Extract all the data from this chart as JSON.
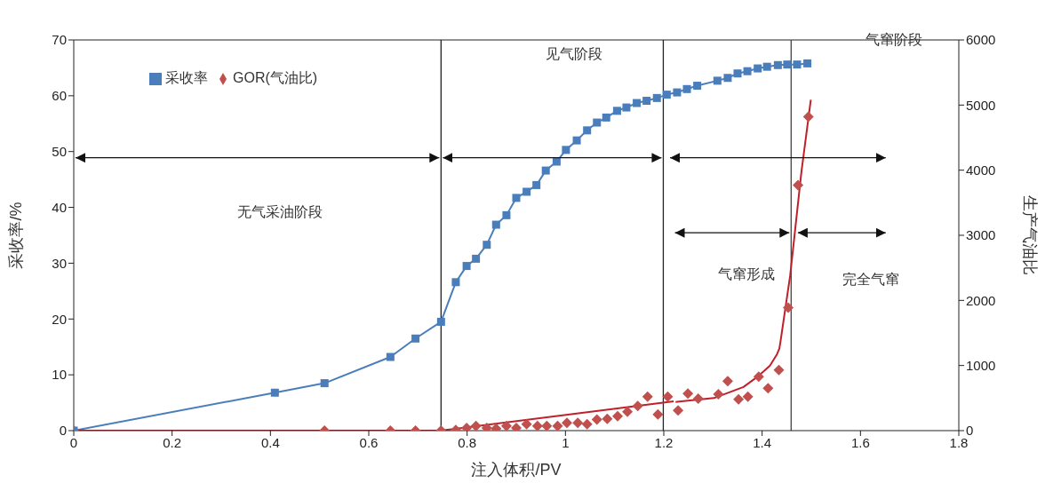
{
  "chart_data": {
    "type": "line",
    "xlabel": "注入体积/PV",
    "ylabel": "采收率/%",
    "y2label": "生产气油比",
    "xlim": [
      0,
      1.8
    ],
    "xticks": [
      0,
      0.2,
      0.4,
      0.6,
      0.8,
      1,
      1.2,
      1.4,
      1.6,
      1.8
    ],
    "ylim": [
      0,
      70
    ],
    "yticks": [
      0,
      10,
      20,
      30,
      40,
      50,
      60,
      70
    ],
    "y2lim": [
      0,
      6000
    ],
    "y2ticks": [
      0,
      1000,
      2000,
      3000,
      4000,
      5000,
      6000
    ],
    "legend": "top left",
    "series": [
      {
        "name": "采收率",
        "color": "#4a7ebb",
        "marker": "square",
        "x": [
          0,
          0.409,
          0.51,
          0.644,
          0.695,
          0.747,
          0.777,
          0.799,
          0.818,
          0.84,
          0.859,
          0.88,
          0.9,
          0.921,
          0.941,
          0.96,
          0.982,
          1.001,
          1.023,
          1.044,
          1.064,
          1.083,
          1.105,
          1.124,
          1.145,
          1.165,
          1.186,
          1.206,
          1.227,
          1.247,
          1.268,
          1.309,
          1.33,
          1.35,
          1.37,
          1.391,
          1.41,
          1.432,
          1.451,
          1.471,
          1.492
        ],
        "values": [
          0,
          6.8,
          8.5,
          13.2,
          16.5,
          19.5,
          26.6,
          29.5,
          30.8,
          33.3,
          36.9,
          38.6,
          41.7,
          42.8,
          44.0,
          46.6,
          48.2,
          50.3,
          52.0,
          53.8,
          55.2,
          56.1,
          57.3,
          57.9,
          58.7,
          59.1,
          59.6,
          60.2,
          60.6,
          61.2,
          61.8,
          62.7,
          63.2,
          64.0,
          64.4,
          64.9,
          65.2,
          65.5,
          65.6,
          65.6,
          65.8
        ]
      },
      {
        "name": "GOR(气油比)",
        "type": "scatter",
        "axis": "y2",
        "color": "#c0504d",
        "marker": "diamond",
        "x": [
          0,
          0.51,
          0.644,
          0.695,
          0.747,
          0.777,
          0.799,
          0.818,
          0.84,
          0.859,
          0.88,
          0.9,
          0.921,
          0.943,
          0.962,
          0.984,
          1.003,
          1.025,
          1.044,
          1.064,
          1.085,
          1.106,
          1.126,
          1.147,
          1.167,
          1.188,
          1.208,
          1.229,
          1.249,
          1.27,
          1.311,
          1.33,
          1.352,
          1.371,
          1.393,
          1.412,
          1.434,
          1.453,
          1.473,
          1.494
        ],
        "values": [
          0,
          0,
          0,
          0,
          0,
          10,
          40,
          70,
          40,
          30,
          70,
          40,
          100,
          70,
          70,
          70,
          120,
          120,
          100,
          170,
          180,
          220,
          290,
          380,
          520,
          250,
          520,
          310,
          570,
          490,
          560,
          760,
          480,
          520,
          830,
          650,
          930,
          1890,
          3770,
          4820
        ]
      },
      {
        "axis": "y2",
        "color": "#c0202a",
        "marker": "none",
        "x": [
          0,
          0.745,
          1.22,
          1.222,
          1.224,
          1.302,
          1.362,
          1.391,
          1.416,
          1.43,
          1.435,
          1.437,
          1.457,
          1.48,
          1.499
        ],
        "values": [
          0,
          0,
          450,
          null,
          440,
          500,
          670,
          830,
          1000,
          1170,
          1260,
          1350,
          2380,
          3980,
          5080
        ]
      }
    ],
    "ref_lines": [
      {
        "axis": "x",
        "value": 0.747,
        "color": "#222222"
      },
      {
        "axis": "x",
        "value": 1.199,
        "color": "#222222"
      },
      {
        "axis": "x",
        "value": 1.459,
        "color": "#444444"
      }
    ],
    "annotations": [
      "无气采油阶段",
      "见气阶段",
      "气窜阶段",
      "气窜形成",
      "完全气窜"
    ]
  }
}
